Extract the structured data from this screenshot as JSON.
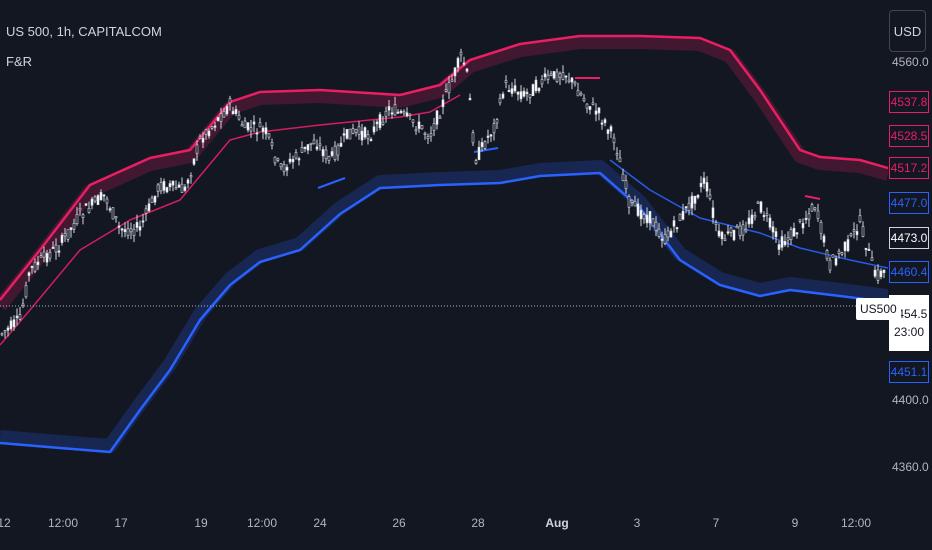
{
  "header": {
    "title": "US 500, 1h, CAPITALCOM",
    "indicator": "F&R"
  },
  "currency": "USD",
  "price_axis": {
    "ticks": [
      "4560.0",
      "4400.0",
      "4360.0"
    ],
    "tags": {
      "upper_outer": "4537.8",
      "upper_mid": "4528.5",
      "upper_inner": "4517.2",
      "lower_inner": "4477.0",
      "last_price": "4473.0",
      "lower_mid": "4460.4",
      "lower_outer": "4451.1"
    },
    "current": {
      "price": "4454.5",
      "countdown": "23:00",
      "symbol": "US500"
    }
  },
  "time_axis": [
    "12",
    "12:00",
    "17",
    "19",
    "12:00",
    "24",
    "26",
    "28",
    "Aug",
    "3",
    "7",
    "9",
    "12:00"
  ],
  "colors": {
    "background": "#131722",
    "upper_band": "#e91e63",
    "lower_band": "#2962ff",
    "candles": "#d1d4dc"
  }
}
